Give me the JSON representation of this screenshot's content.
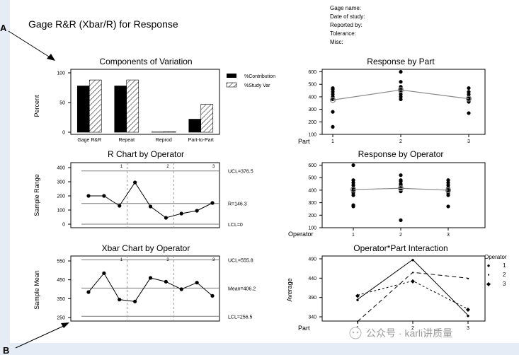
{
  "slide": {
    "label_a": "A",
    "label_b": "B"
  },
  "report": {
    "title": "Gage R&R (Xbar/R) for Response",
    "fields": [
      "Gage name:",
      "Date of study:",
      "Reported by:",
      "Tolerance:",
      "Misc:"
    ]
  },
  "watermark": {
    "text": "公众号 · karli讲质量"
  },
  "chart_data": [
    {
      "id": "components",
      "type": "bar",
      "title": "Components of Variation",
      "ylabel": "Percent",
      "ylim": [
        0,
        100
      ],
      "yticks": [
        0,
        50,
        100
      ],
      "categories": [
        "Gage R&R",
        "Repeat",
        "Reprod",
        "Part-to-Part"
      ],
      "series": [
        {
          "name": "%Contribution",
          "values": [
            78,
            78,
            0.5,
            22
          ],
          "color": "#000000"
        },
        {
          "name": "%Study Var",
          "values": [
            88,
            88,
            1,
            47
          ],
          "color": "hatch"
        }
      ],
      "legend_position": "top-right"
    },
    {
      "id": "response_by_part",
      "type": "scatter",
      "title": "Response by Part",
      "xlabel": "Part",
      "ylim": [
        100,
        620
      ],
      "yticks": [
        100,
        200,
        300,
        400,
        500,
        600
      ],
      "categories": [
        "1",
        "2",
        "3"
      ],
      "points": [
        [
          380,
          400,
          420,
          440,
          460,
          470,
          280,
          160
        ],
        [
          600,
          520,
          480,
          460,
          440,
          420,
          400,
          380
        ],
        [
          470,
          440,
          420,
          400,
          390,
          380,
          360,
          270
        ]
      ],
      "means": [
        375,
        455,
        385
      ]
    },
    {
      "id": "r_chart",
      "type": "line",
      "title": "R Chart by Operator",
      "ylabel": "Sample Range",
      "ylim": [
        0,
        400
      ],
      "yticks": [
        0,
        100,
        200,
        300,
        400
      ],
      "values": [
        200,
        200,
        130,
        295,
        125,
        45,
        75,
        95,
        150
      ],
      "ucl": 376.5,
      "center": 146.3,
      "lcl": 0,
      "ucl_label": "UCL=376.5",
      "center_label": "R=146.3",
      "lcl_label": "LCL=0",
      "operators": [
        "1",
        "2",
        "3"
      ]
    },
    {
      "id": "response_by_operator",
      "type": "scatter",
      "title": "Response by Operator",
      "xlabel": "Operator",
      "ylim": [
        100,
        620
      ],
      "yticks": [
        100,
        200,
        300,
        400,
        500,
        600
      ],
      "categories": [
        "1",
        "2",
        "3"
      ],
      "points": [
        [
          600,
          480,
          460,
          440,
          420,
          400,
          380,
          360,
          280,
          270
        ],
        [
          520,
          480,
          470,
          450,
          440,
          420,
          410,
          400,
          390,
          160
        ],
        [
          480,
          460,
          440,
          420,
          410,
          400,
          390,
          380,
          360,
          270
        ]
      ],
      "means": [
        405,
        415,
        400
      ]
    },
    {
      "id": "xbar_chart",
      "type": "line",
      "title": "Xbar Chart by Operator",
      "ylabel": "Sample Mean",
      "ylim": [
        250,
        550
      ],
      "yticks": [
        250,
        350,
        450,
        550
      ],
      "values": [
        385,
        485,
        345,
        335,
        460,
        440,
        400,
        435,
        365
      ],
      "ucl": 555.8,
      "center": 406.2,
      "lcl": 256.5,
      "ucl_label": "UCL=555.8",
      "center_label": "Mean=406.2",
      "lcl_label": "LCL=256.5",
      "operators": [
        "1",
        "2",
        "3"
      ]
    },
    {
      "id": "interaction",
      "type": "line",
      "title": "Operator*Part Interaction",
      "ylabel": "Average",
      "xlabel": "Part",
      "ylim": [
        340,
        490
      ],
      "yticks": [
        340,
        390,
        440,
        490
      ],
      "categories": [
        "1",
        "2",
        "3"
      ],
      "legend_title": "Operator",
      "series": [
        {
          "name": "1",
          "values": [
            385,
            488,
            344
          ],
          "marker": "●",
          "dash": "none"
        },
        {
          "name": "2",
          "values": [
            328,
            455,
            440
          ],
          "marker": "▪",
          "dash": "6,4"
        },
        {
          "name": "3",
          "values": [
            396,
            433,
            360
          ],
          "marker": "◆",
          "dash": "3,3"
        }
      ]
    }
  ]
}
